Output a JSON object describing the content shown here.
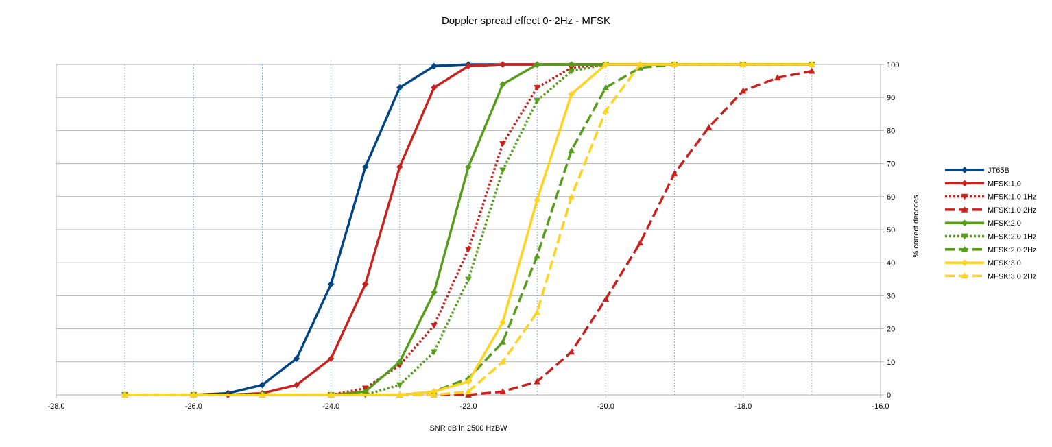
{
  "chart_data": {
    "type": "line",
    "title": "Doppler spread effect 0~2Hz - MFSK",
    "xlabel": "SNR dB in 2500 HzBW",
    "ylabel": "% correct decodes",
    "xlim": [
      -28,
      -16
    ],
    "ylim": [
      0,
      100
    ],
    "x_ticks": [
      "-28.0",
      "-26.0",
      "-24.0",
      "-22.0",
      "-20.0",
      "-18.0",
      "-16.0"
    ],
    "y_ticks": [
      "0",
      "10",
      "20",
      "30",
      "40",
      "50",
      "60",
      "70",
      "80",
      "90",
      "100"
    ],
    "y_axis_side": "right",
    "grid": true,
    "legend_position": "right",
    "series": [
      {
        "name": "JT65B",
        "color": "#004586",
        "dash": "solid",
        "marker": "diamond",
        "x": [
          -27,
          -26,
          -25.5,
          -25,
          -24.5,
          -24,
          -23.5,
          -23,
          -22.5,
          -22,
          -21.5,
          -21,
          -20.5,
          -20,
          -19,
          -18,
          -17
        ],
        "y": [
          0,
          0,
          0.5,
          3,
          11,
          33.5,
          69,
          93,
          99.5,
          100,
          100,
          100,
          100,
          100,
          100,
          100,
          100
        ]
      },
      {
        "name": "MFSK:1,0",
        "color": "#c9211e",
        "dash": "solid",
        "marker": "diamond",
        "x": [
          -27,
          -26,
          -25.5,
          -25,
          -24.5,
          -24,
          -23.5,
          -23,
          -22.5,
          -22,
          -21.5,
          -21,
          -20.5,
          -20,
          -19,
          -18,
          -17
        ],
        "y": [
          0,
          0,
          0,
          0.5,
          3,
          11,
          33.5,
          69,
          93,
          99.5,
          100,
          100,
          100,
          100,
          100,
          100,
          100
        ]
      },
      {
        "name": "MFSK:1,0 1Hz",
        "color": "#c9211e",
        "dash": "dot",
        "marker": "triangle-down",
        "x": [
          -27,
          -26,
          -25,
          -24,
          -23.5,
          -23,
          -22.5,
          -22,
          -21.5,
          -21,
          -20.5,
          -20,
          -19,
          -18,
          -17
        ],
        "y": [
          0,
          0,
          0,
          0,
          2,
          9,
          21,
          44,
          76,
          93,
          99,
          100,
          100,
          100,
          100
        ]
      },
      {
        "name": "MFSK:1,0 2Hz",
        "color": "#c9211e",
        "dash": "dash",
        "marker": "triangle-up",
        "x": [
          -27,
          -26,
          -25,
          -24,
          -23,
          -22.5,
          -22,
          -21.5,
          -21,
          -20.5,
          -20,
          -19.5,
          -19,
          -18.5,
          -18,
          -17.5,
          -17
        ],
        "y": [
          0,
          0,
          0,
          0,
          0,
          0,
          0,
          1,
          4,
          13,
          29,
          46,
          67,
          81,
          92,
          96,
          98
        ]
      },
      {
        "name": "MFSK:2,0",
        "color": "#579d1c",
        "dash": "solid",
        "marker": "diamond",
        "x": [
          -27,
          -26,
          -25,
          -24,
          -23.5,
          -23,
          -22.5,
          -22,
          -21.5,
          -21,
          -20.5,
          -20,
          -19,
          -18,
          -17
        ],
        "y": [
          0,
          0,
          0,
          0,
          1,
          10,
          31,
          69,
          94,
          100,
          100,
          100,
          100,
          100,
          100
        ]
      },
      {
        "name": "MFSK:2,0 1Hz",
        "color": "#579d1c",
        "dash": "dot",
        "marker": "triangle-down",
        "x": [
          -27,
          -26,
          -25,
          -24,
          -23.5,
          -23,
          -22.5,
          -22,
          -21.5,
          -21,
          -20.5,
          -20,
          -19,
          -18,
          -17
        ],
        "y": [
          0,
          0,
          0,
          0,
          0,
          3,
          13,
          35,
          68,
          89,
          98,
          100,
          100,
          100,
          100
        ]
      },
      {
        "name": "MFSK:2,0 2Hz",
        "color": "#579d1c",
        "dash": "dash",
        "marker": "triangle-up",
        "x": [
          -27,
          -26,
          -25,
          -24,
          -23,
          -22.5,
          -22,
          -21.5,
          -21,
          -20.5,
          -20,
          -19.5,
          -19,
          -18,
          -17
        ],
        "y": [
          0,
          0,
          0,
          0,
          0,
          1,
          5,
          16,
          42,
          74,
          93,
          99,
          100,
          100,
          100
        ]
      },
      {
        "name": "MFSK:3,0",
        "color": "#ffd320",
        "dash": "solid",
        "marker": "diamond",
        "x": [
          -27,
          -26,
          -25,
          -24,
          -23,
          -22.5,
          -22,
          -21.5,
          -21,
          -20.5,
          -20,
          -19.5,
          -19,
          -18,
          -17
        ],
        "y": [
          0,
          0,
          0,
          0,
          0,
          1,
          4,
          22,
          59,
          91,
          100,
          100,
          100,
          100,
          100
        ]
      },
      {
        "name": "MFSK:3,0 2Hz",
        "color": "#ffd320",
        "dash": "dash",
        "marker": "triangle-up",
        "x": [
          -27,
          -26,
          -25,
          -24,
          -23,
          -22.5,
          -22,
          -21.5,
          -21,
          -20.5,
          -20,
          -19.5,
          -19,
          -18,
          -17
        ],
        "y": [
          0,
          0,
          0,
          0,
          0,
          0,
          1,
          10,
          25,
          60,
          86,
          100,
          100,
          100,
          100
        ]
      }
    ]
  }
}
